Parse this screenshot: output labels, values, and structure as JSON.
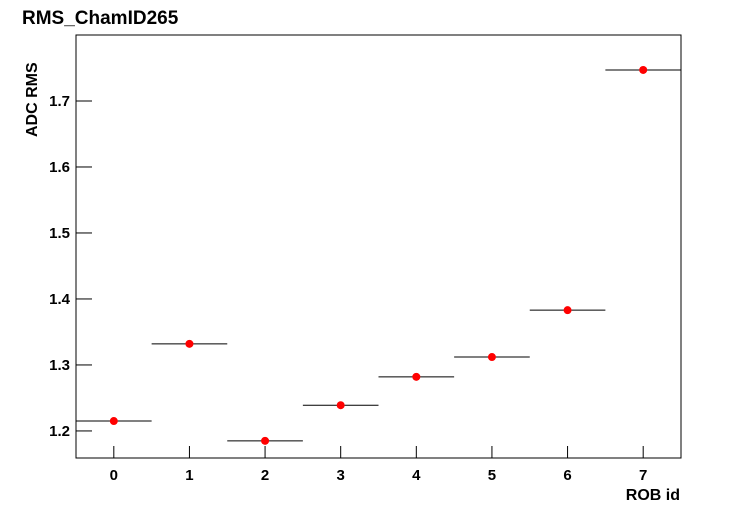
{
  "chart_data": {
    "type": "scatter",
    "title": "RMS_ChamID265",
    "x_label": "ROB id",
    "y_label": "ADC RMS",
    "x": [
      0,
      1,
      2,
      3,
      4,
      5,
      6,
      7
    ],
    "xerr": [
      0.5,
      0.5,
      0.5,
      0.5,
      0.5,
      0.5,
      0.5,
      0.5
    ],
    "series": [
      {
        "color": "#ff0000",
        "values": [
          1.215,
          1.332,
          1.185,
          1.239,
          1.282,
          1.312,
          1.383,
          1.747
        ]
      }
    ],
    "xlim": [
      -0.5,
      7.5
    ],
    "xticks": [
      0,
      1,
      2,
      3,
      4,
      5,
      6,
      7
    ],
    "ylim": [
      1.159,
      1.8
    ],
    "yticks": [
      1.2,
      1.3,
      1.4,
      1.5,
      1.6,
      1.7
    ]
  }
}
